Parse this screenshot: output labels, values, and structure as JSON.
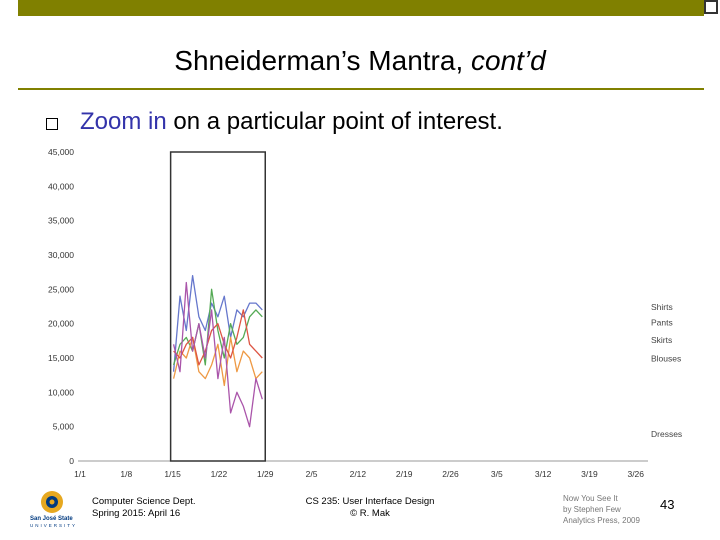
{
  "slide": {
    "title_main": "Shneiderman’s Mantra, ",
    "title_italic": "cont’d",
    "bullet_highlight": "Zoom in",
    "bullet_rest": " on a particular point of interest.",
    "page_number": "43"
  },
  "footer": {
    "left_line1": "Computer Science Dept.",
    "left_line2": "Spring 2015: April 16",
    "mid_line1": "CS 235: User Interface Design",
    "mid_line2": "© R. Mak",
    "cite_line1": "Now You See It",
    "cite_line2": "by Stephen Few",
    "cite_line3": "Analytics Press, 2009",
    "logo_text": "San José State",
    "logo_sub": "UNIVERSITY"
  },
  "colors": {
    "accent": "#808000",
    "shirts": "#6677cc",
    "pants": "#55aa55",
    "skirts": "#ee9944",
    "blouses": "#dd5544",
    "dresses": "#aa55aa"
  },
  "chart_data": {
    "type": "line",
    "x_ticks": [
      "1/1",
      "1/8",
      "1/15",
      "1/22",
      "1/29",
      "2/5",
      "2/12",
      "2/19",
      "2/26",
      "3/5",
      "3/12",
      "3/19",
      "3/26"
    ],
    "y_ticks": [
      "45,000",
      "40,000",
      "35,000",
      "30,000",
      "25,000",
      "20,000",
      "15,000",
      "10,000",
      "5,000",
      "0"
    ],
    "ylim": [
      0,
      45000
    ],
    "zoom_range": [
      "1/15",
      "1/29"
    ],
    "series": [
      {
        "name": "Shirts",
        "values": [
          13000,
          24000,
          19000,
          27000,
          21000,
          19000,
          23000,
          21000,
          24000,
          18000,
          22000,
          21000,
          23000,
          23000,
          22000
        ]
      },
      {
        "name": "Pants",
        "values": [
          14000,
          17000,
          18000,
          16000,
          20000,
          14000,
          25000,
          19000,
          15000,
          20000,
          17000,
          18000,
          21000,
          22000,
          21000
        ]
      },
      {
        "name": "Skirts",
        "values": [
          12000,
          16000,
          15000,
          18000,
          13000,
          12000,
          14000,
          17000,
          11000,
          18000,
          13000,
          16000,
          15000,
          12000,
          13000
        ]
      },
      {
        "name": "Blouses",
        "values": [
          16000,
          15000,
          17000,
          18000,
          14000,
          16000,
          19000,
          20000,
          17000,
          15000,
          18000,
          22000,
          17000,
          16000,
          15000
        ]
      },
      {
        "name": "Dresses",
        "values": [
          17000,
          13000,
          26000,
          16000,
          20000,
          15000,
          22000,
          12000,
          18000,
          7000,
          10000,
          8000,
          5000,
          12000,
          9000
        ]
      }
    ],
    "legend": [
      "Shirts",
      "Pants",
      "Skirts",
      "Blouses",
      "Dresses"
    ]
  }
}
